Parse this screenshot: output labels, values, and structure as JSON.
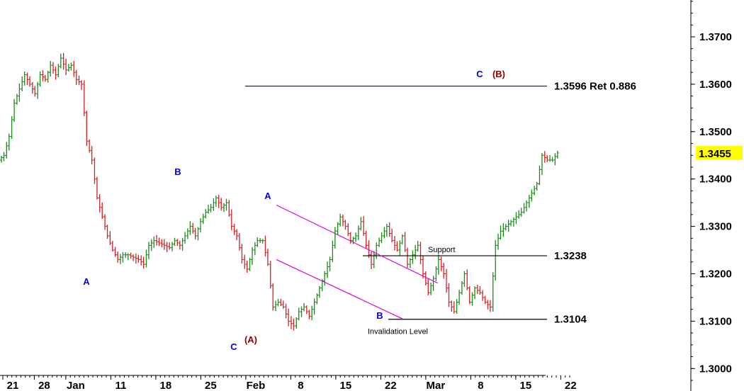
{
  "chart_data": {
    "type": "candlestick",
    "y_axis": {
      "range": [
        1.2975,
        1.3795
      ],
      "ticks": [
        1.3,
        1.31,
        1.32,
        1.33,
        1.34,
        1.35,
        1.36,
        1.37
      ],
      "tick_labels": [
        "1.3000",
        "1.3100",
        "1.3200",
        "1.3300",
        "1.3400",
        "1.3500",
        "1.3600",
        "1.3700"
      ],
      "position": "right"
    },
    "x_axis": {
      "labels": [
        "21",
        "28",
        "Jan",
        "11",
        "18",
        "25",
        "Feb",
        "8",
        "15",
        "22",
        "Mar",
        "8",
        "15",
        "22"
      ],
      "label_bars": [
        0,
        7,
        14,
        24,
        34,
        44,
        54,
        64,
        74,
        84,
        94,
        104,
        114,
        124
      ],
      "bars_total": 127
    },
    "last_price": {
      "value": 1.3455,
      "label": "1.3455",
      "highlight_color": "#ffff00"
    },
    "colors": {
      "up": "#1a8a1a",
      "down": "#d42020",
      "level_blue": "#0000cc",
      "channel": "#dd00dd",
      "wave_blue": "#0000dd",
      "wave_dark": "#8b0000"
    },
    "price_closes": [
      1.345,
      1.349,
      1.356,
      1.359,
      1.362,
      1.36,
      1.358,
      1.362,
      1.361,
      1.364,
      1.362,
      1.3655,
      1.363,
      1.364,
      1.361,
      1.36,
      1.348,
      1.344,
      1.336,
      1.332,
      1.328,
      1.325,
      1.323,
      1.324,
      1.324,
      1.3235,
      1.323,
      1.322,
      1.326,
      1.327,
      1.3265,
      1.326,
      1.3255,
      1.327,
      1.326,
      1.328,
      1.33,
      1.328,
      1.331,
      1.333,
      1.334,
      1.336,
      1.334,
      1.335,
      1.33,
      1.328,
      1.323,
      1.321,
      1.325,
      1.327,
      1.327,
      1.322,
      1.313,
      1.314,
      1.313,
      1.31,
      1.309,
      1.312,
      1.313,
      1.311,
      1.314,
      1.317,
      1.32,
      1.323,
      1.329,
      1.332,
      1.33,
      1.327,
      1.328,
      1.331,
      1.326,
      1.322,
      1.326,
      1.328,
      1.33,
      1.327,
      1.325,
      1.328,
      1.322,
      1.324,
      1.326,
      1.32,
      1.316,
      1.319,
      1.323,
      1.32,
      1.314,
      1.312,
      1.316,
      1.32,
      1.314,
      1.317,
      1.316,
      1.314,
      1.313,
      1.326,
      1.329,
      1.33,
      1.331,
      1.332,
      1.333,
      1.335,
      1.337,
      1.339,
      1.345,
      1.344,
      1.344,
      1.3455
    ],
    "levels": [
      {
        "value": 1.3596,
        "label": "1.3596 Ret 0.886",
        "color": "#0000cc",
        "from_bar": 53
      },
      {
        "value": 1.3238,
        "label": "1.3238",
        "color": "#000000",
        "from_bar": 81,
        "note": "Support"
      },
      {
        "value": 1.3104,
        "label": "1.3104",
        "color": "#000000",
        "from_bar": 87,
        "note": "Invalidation Level"
      }
    ],
    "channel": {
      "upper": {
        "from_bar": 63,
        "from_value": 1.3345,
        "to_bar": 98,
        "to_value": 1.318
      },
      "lower": {
        "from_bar": 63,
        "from_value": 1.323,
        "to_bar": 88,
        "to_value": 1.3105
      },
      "color": "#dd00dd"
    },
    "wave_labels": [
      {
        "text": "A",
        "bar": 19,
        "value": 1.3175,
        "color": "#0000dd"
      },
      {
        "text": "B",
        "bar": 39,
        "value": 1.3405,
        "color": "#0000dd"
      },
      {
        "text": "C",
        "bar": 52,
        "value": 1.304,
        "color": "#0000dd"
      },
      {
        "text": "(A)",
        "bar": 55,
        "value": 1.3052,
        "color": "#8b0000"
      },
      {
        "text": "A",
        "bar": 59,
        "value": 1.3362,
        "color": "#0000dd"
      },
      {
        "text": "B",
        "bar": 84,
        "value": 1.3094,
        "color": "#0000dd"
      },
      {
        "text": "C",
        "bar": 106,
        "value": 1.362,
        "color": "#0000dd"
      },
      {
        "text": "(B)",
        "bar": 110,
        "value": 1.362,
        "color": "#8b0000"
      }
    ]
  }
}
